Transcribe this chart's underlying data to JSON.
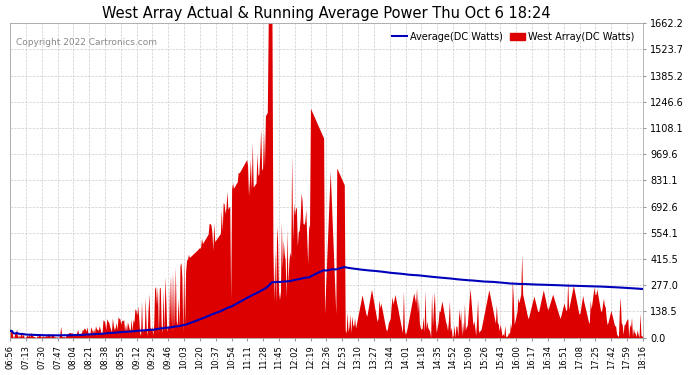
{
  "title": "West Array Actual & Running Average Power Thu Oct 6 18:24",
  "copyright": "Copyright 2022 Cartronics.com",
  "legend_avg": "Average(DC Watts)",
  "legend_west": "West Array(DC Watts)",
  "ylabel_values": [
    0.0,
    138.5,
    277.0,
    415.5,
    554.1,
    692.6,
    831.1,
    969.6,
    1108.1,
    1246.6,
    1385.2,
    1523.7,
    1662.2
  ],
  "ylim": [
    0,
    1662.2
  ],
  "background_color": "#ffffff",
  "grid_color": "#c8c8c8",
  "bar_color": "#dd0000",
  "avg_line_color": "#0000bb",
  "title_color": "#000000",
  "copyright_color": "#888888",
  "x_labels": [
    "06:56",
    "07:13",
    "07:30",
    "07:47",
    "08:04",
    "08:21",
    "08:38",
    "08:55",
    "09:12",
    "09:29",
    "09:46",
    "10:03",
    "10:20",
    "10:37",
    "10:54",
    "11:11",
    "11:28",
    "11:45",
    "12:02",
    "12:19",
    "12:36",
    "12:53",
    "13:10",
    "13:27",
    "13:44",
    "14:01",
    "14:18",
    "14:35",
    "14:52",
    "15:09",
    "15:26",
    "15:43",
    "16:00",
    "16:17",
    "16:34",
    "16:51",
    "17:08",
    "17:25",
    "17:42",
    "17:59",
    "18:16"
  ]
}
